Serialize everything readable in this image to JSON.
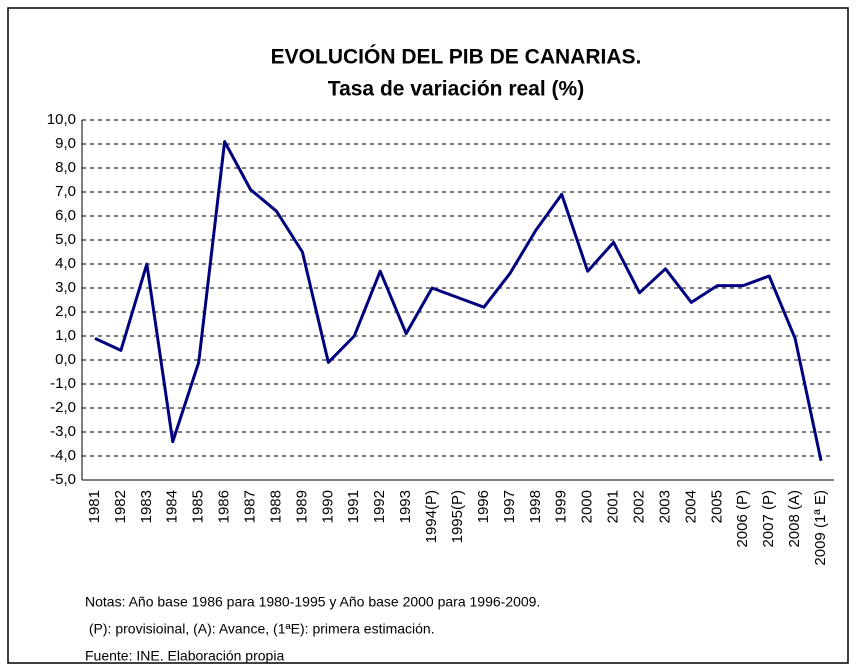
{
  "chart_data": {
    "type": "line",
    "title": "EVOLUCIÓN DEL PIB DE CANARIAS.",
    "subtitle": "Tasa de variación real (%)",
    "categories": [
      "1981",
      "1982",
      "1983",
      "1984",
      "1985",
      "1986",
      "1987",
      "1988",
      "1989",
      "1990",
      "1991",
      "1992",
      "1993",
      "1994(P)",
      "1995(P)",
      "1996",
      "1997",
      "1998",
      "1999",
      "2000",
      "2001",
      "2002",
      "2003",
      "2004",
      "2005",
      "2006 (P)",
      "2007 (P)",
      "2008 (A)",
      "2009 (1ª E)"
    ],
    "series": [
      {
        "name": "PIB",
        "color": "#00007f",
        "values": [
          0.9,
          0.4,
          4.0,
          -3.4,
          -0.1,
          9.1,
          7.1,
          6.2,
          4.5,
          -0.1,
          1.0,
          3.7,
          1.1,
          3.0,
          2.6,
          2.2,
          3.6,
          5.4,
          6.9,
          3.7,
          4.9,
          2.8,
          3.8,
          2.4,
          3.1,
          3.1,
          3.5,
          0.9,
          -4.2
        ]
      }
    ],
    "ylim": [
      -5,
      10
    ],
    "yticks": [
      {
        "value": -5,
        "label": "-5,0"
      },
      {
        "value": -4,
        "label": "-4,0"
      },
      {
        "value": -3,
        "label": "-3,0"
      },
      {
        "value": -2,
        "label": "-2,0"
      },
      {
        "value": -1,
        "label": "-1,0"
      },
      {
        "value": 0,
        "label": "0,0"
      },
      {
        "value": 1,
        "label": "1,0"
      },
      {
        "value": 2,
        "label": "2,0"
      },
      {
        "value": 3,
        "label": "3,0"
      },
      {
        "value": 4,
        "label": "4,0"
      },
      {
        "value": 5,
        "label": "5,0"
      },
      {
        "value": 6,
        "label": "6,0"
      },
      {
        "value": 7,
        "label": "7,0"
      },
      {
        "value": 8,
        "label": "8,0"
      },
      {
        "value": 9,
        "label": "9,0"
      },
      {
        "value": 10,
        "label": "10,0"
      }
    ],
    "grid": true,
    "notes": [
      "Notas: Año base 1986 para 1980-1995 y Año base 2000 para 1996-2009.",
      " (P): provisioinal, (A): Avance, (1ªE): primera estimación.",
      "Fuente: INE. Elaboración propia"
    ]
  }
}
